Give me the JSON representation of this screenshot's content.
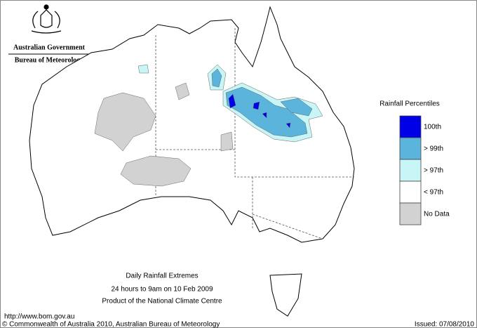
{
  "header": {
    "government": "Australian Government",
    "bureau": "Bureau of Meteorology"
  },
  "legend": {
    "title": "Rainfall Percentiles",
    "items": [
      {
        "label": "100th",
        "color": "#0000e6"
      },
      {
        "label": "> 99th",
        "color": "#5ab4dc"
      },
      {
        "label": "> 97th",
        "color": "#c8f5f5"
      },
      {
        "label": "< 97th",
        "color": "#ffffff"
      },
      {
        "label": "No Data",
        "color": "#d2d2d2"
      }
    ]
  },
  "caption": {
    "title": "Daily Rainfall Extremes",
    "subtitle": "24 hours to 9am on 10 Feb 2009",
    "credit": "Product of the National Climate Centre"
  },
  "footer": {
    "url": "http://www.bom.gov.au",
    "copyright": "© Commonwealth of Australia 2010, Australian Bureau of Meteorology",
    "issued": "Issued: 07/08/2010"
  }
}
